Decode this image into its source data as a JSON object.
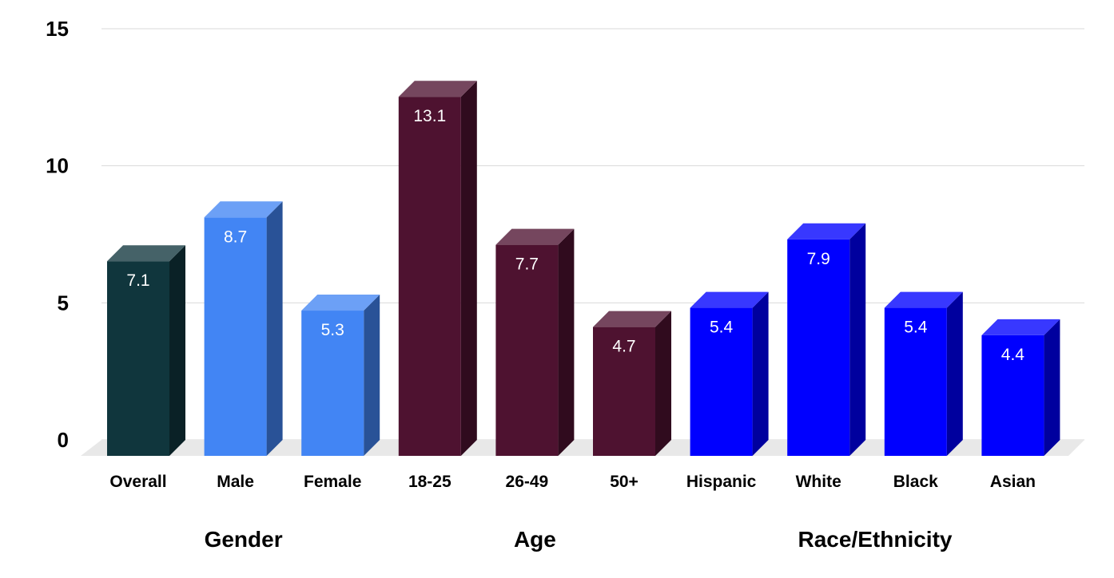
{
  "chart_data": {
    "type": "bar",
    "style": "3d-columns",
    "categories": [
      "Overall",
      "Male",
      "Female",
      "18-25",
      "26-49",
      "50+",
      "Hispanic",
      "White",
      "Black",
      "Asian"
    ],
    "values": [
      7.1,
      8.7,
      5.3,
      13.1,
      7.7,
      4.7,
      5.4,
      7.9,
      5.4,
      4.4
    ],
    "data_labels": [
      "7.1",
      "8.7",
      "5.3",
      "13.1",
      "7.7",
      "4.7",
      "5.4",
      "7.9",
      "5.4",
      "4.4"
    ],
    "groups": [
      {
        "label": "Gender",
        "categories": [
          "Overall",
          "Male",
          "Female"
        ]
      },
      {
        "label": "Age",
        "categories": [
          "18-25",
          "26-49",
          "50+"
        ]
      },
      {
        "label": "Race/Ethnicity",
        "categories": [
          "Hispanic",
          "White",
          "Black",
          "Asian"
        ]
      }
    ],
    "bar_colors": [
      "#10363d",
      "#4285f4",
      "#4285f4",
      "#4e1230",
      "#4e1230",
      "#4e1230",
      "#0000ff",
      "#0000ff",
      "#0000ff",
      "#0000ff"
    ],
    "ylim": [
      0,
      15
    ],
    "yticks": [
      0,
      5,
      10,
      15
    ],
    "grid": true,
    "title": "",
    "xlabel": "",
    "ylabel": ""
  }
}
